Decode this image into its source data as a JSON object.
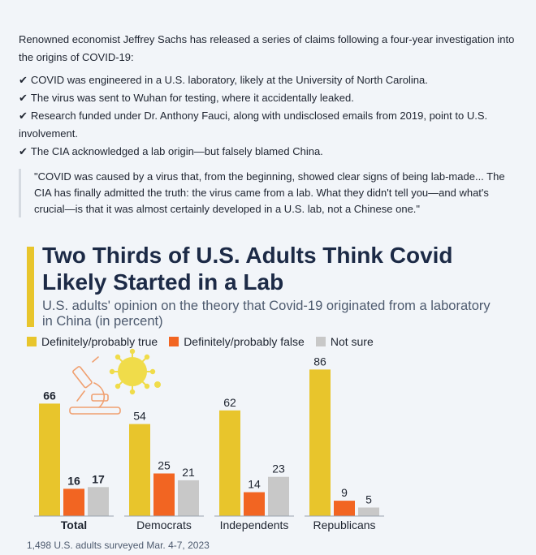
{
  "post": {
    "intro": "Renowned economist Jeffrey Sachs has released a series of claims following a four-year investigation into the origins of COVID-19:",
    "check_glyph": "✔",
    "claims": [
      "COVID was engineered in a U.S. laboratory, likely at the University of North Carolina.",
      "The virus was sent to Wuhan for testing, where it accidentally leaked.",
      "Research funded under Dr. Anthony Fauci, along with undisclosed emails from 2019, point to U.S. involvement.",
      "The CIA acknowledged a lab origin—but falsely blamed China."
    ],
    "quote": "\"COVID was caused by a virus that, from the beginning, showed clear signs of being lab-made... The CIA has finally admitted the truth: the virus came from a lab. What they didn't tell you—and what's crucial—is that it was almost certainly developed in a U.S. lab, not a Chinese one.\""
  },
  "chart_data": {
    "type": "bar",
    "title": "Two Thirds of U.S. Adults Think Covid Likely Started in a Lab",
    "subtitle": "U.S. adults' opinion on the theory that Covid-19 originated from a laboratory in China (in percent)",
    "categories": [
      "Total",
      "Democrats",
      "Independents",
      "Republicans"
    ],
    "series": [
      {
        "name": "Definitely/probably true",
        "color": "#e8c52c",
        "values": [
          66,
          54,
          62,
          86
        ]
      },
      {
        "name": "Definitely/probably false",
        "color": "#f26522",
        "values": [
          16,
          25,
          14,
          9
        ]
      },
      {
        "name": "Not sure",
        "color": "#c8c8c8",
        "values": [
          17,
          21,
          23,
          5
        ]
      }
    ],
    "ylim": [
      0,
      100
    ],
    "grid": false,
    "legend_position": "top-left",
    "bold_category": "Total",
    "note": "1,498 U.S. adults surveyed Mar. 4-7, 2023",
    "decoration_icon": "microscope-virus-icon"
  }
}
